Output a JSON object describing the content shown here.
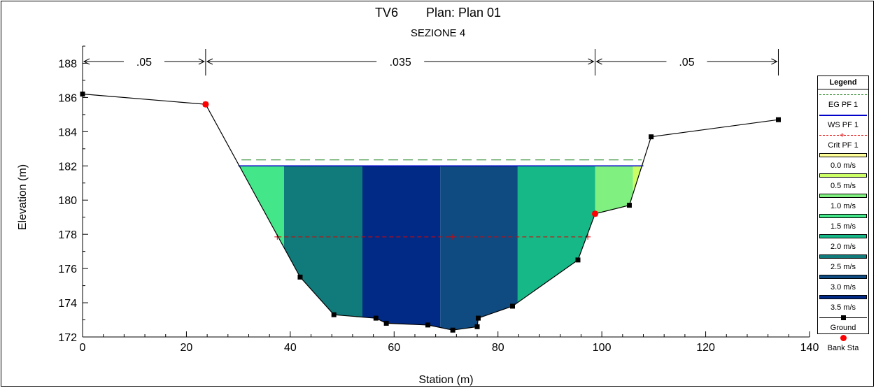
{
  "title": {
    "main": "TV6        Plan: Plan 01",
    "sub": "SEZIONE 4"
  },
  "chart_data": {
    "type": "area",
    "xlabel": "Station (m)",
    "ylabel": "Elevation (m)",
    "xlim": [
      0,
      140
    ],
    "ylim": [
      172,
      189
    ],
    "x_ticks": [
      "0",
      "20",
      "40",
      "60",
      "80",
      "100",
      "120",
      "140"
    ],
    "y_ticks": [
      "172",
      "174",
      "176",
      "178",
      "180",
      "182",
      "184",
      "186",
      "188"
    ],
    "mannings": {
      "labels": [
        ".05",
        ".035",
        ".05"
      ],
      "breaks": [
        0,
        23.7,
        98.7,
        134
      ]
    },
    "ground": {
      "name": "Ground",
      "x": [
        0,
        23.7,
        41.9,
        48.4,
        56.5,
        58.5,
        66.5,
        71.3,
        76.0,
        76.2,
        82.8,
        95.4,
        98.7,
        105.3,
        109.5,
        134
      ],
      "y": [
        186.2,
        185.6,
        175.5,
        173.3,
        173.1,
        172.8,
        172.7,
        172.4,
        172.6,
        173.1,
        173.8,
        176.5,
        179.2,
        179.7,
        183.7,
        184.7
      ]
    },
    "bank_stations": {
      "name": "Bank Sta",
      "x": [
        23.7,
        98.7
      ],
      "y": [
        185.6,
        179.2
      ]
    },
    "eg": {
      "name": "EG PF 1",
      "elevation": 182.35
    },
    "ws": {
      "name": "WS PF 1",
      "elevation": 182.0
    },
    "crit": {
      "name": "Crit PF 1",
      "elevation": 177.85
    },
    "velocity_bands": [
      {
        "x0": 30.0,
        "x1": 38.8,
        "velocity": "1.5 m/s"
      },
      {
        "x0": 38.8,
        "x1": 53.9,
        "velocity": "2.5 m/s"
      },
      {
        "x0": 53.9,
        "x1": 68.9,
        "velocity": "3.5 m/s"
      },
      {
        "x0": 68.9,
        "x1": 83.8,
        "velocity": "3.0 m/s"
      },
      {
        "x0": 83.8,
        "x1": 98.7,
        "velocity": "2.0 m/s"
      },
      {
        "x0": 98.7,
        "x1": 106.0,
        "velocity": "1.0 m/s"
      },
      {
        "x0": 106.0,
        "x1": 108.0,
        "velocity": "0.5 m/s"
      }
    ],
    "legend": {
      "title": "Legend",
      "entries": [
        {
          "label": "EG PF 1",
          "kind": "dash",
          "color": "#1a7f1a"
        },
        {
          "label": "WS PF 1",
          "kind": "line",
          "color": "#0000c8"
        },
        {
          "label": "Crit PF 1",
          "kind": "dashplus",
          "color": "#e00000"
        },
        {
          "label": "0.0 m/s",
          "kind": "swatch",
          "color": "#ffff99"
        },
        {
          "label": "0.5 m/s",
          "kind": "swatch",
          "color": "#ccff66"
        },
        {
          "label": "1.0 m/s",
          "kind": "swatch",
          "color": "#80f080"
        },
        {
          "label": "1.5 m/s",
          "kind": "swatch",
          "color": "#44e68a"
        },
        {
          "label": "2.0 m/s",
          "kind": "swatch",
          "color": "#17b888"
        },
        {
          "label": "2.5 m/s",
          "kind": "swatch",
          "color": "#117a7a"
        },
        {
          "label": "3.0 m/s",
          "kind": "swatch",
          "color": "#0f4a80"
        },
        {
          "label": "3.5 m/s",
          "kind": "swatch",
          "color": "#002a85"
        },
        {
          "label": "Ground",
          "kind": "ground",
          "color": "#000000"
        },
        {
          "label": "Bank Sta",
          "kind": "bank",
          "color": "#ff0000"
        }
      ]
    }
  }
}
